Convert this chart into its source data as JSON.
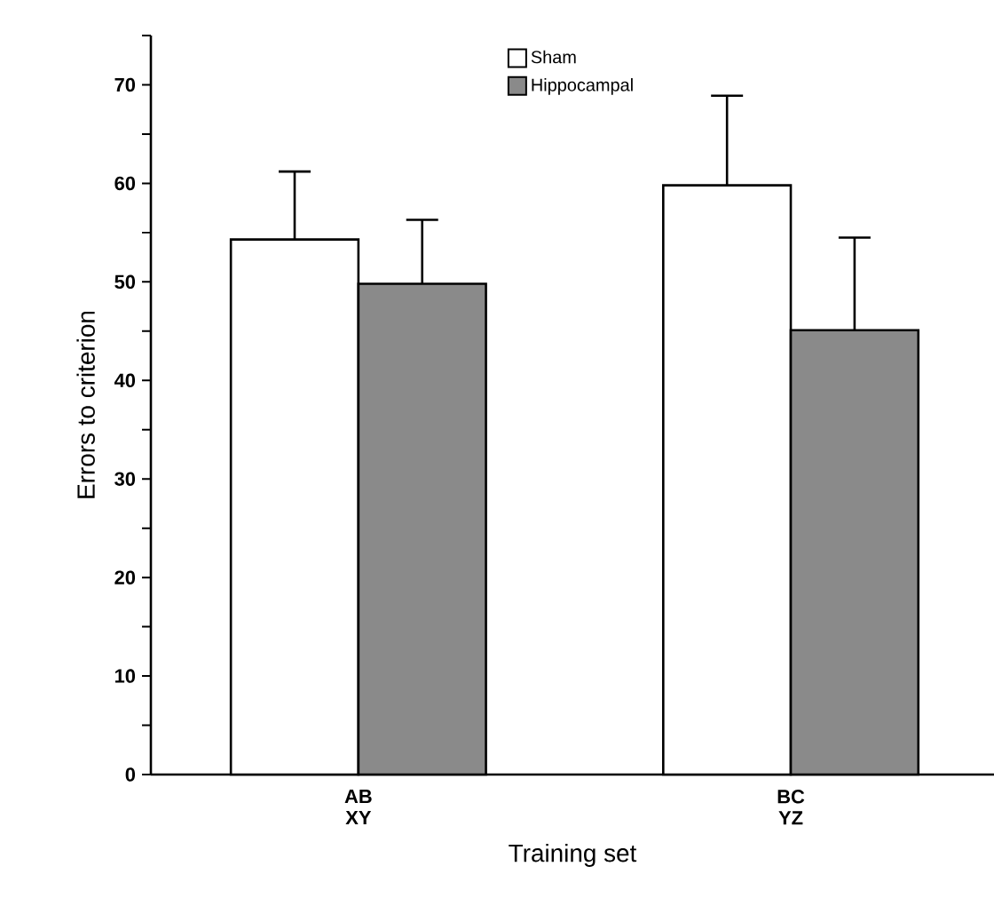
{
  "chart_data": {
    "type": "bar",
    "xlabel": "Training set",
    "ylabel": "Errors to criterion",
    "categories": [
      "AB XY",
      "BC YZ"
    ],
    "series": [
      {
        "name": "Sham",
        "color": "#ffffff",
        "values": [
          54.3,
          59.8
        ],
        "errors": [
          [
            54.3,
            61.2
          ],
          [
            59.8,
            68.9
          ]
        ]
      },
      {
        "name": "Hippocampal",
        "color": "#8a8a8a",
        "values": [
          49.8,
          45.1
        ],
        "errors": [
          [
            49.8,
            56.3
          ],
          [
            45.1,
            54.5
          ]
        ]
      }
    ],
    "ylim": [
      0,
      75
    ],
    "yticks": [
      0,
      {
        "value": 5,
        "label": null
      },
      10,
      {
        "value": 15,
        "label": null
      },
      20,
      {
        "value": 25,
        "label": null
      },
      30,
      {
        "value": 35,
        "label": null
      },
      40,
      {
        "value": 45,
        "label": null
      },
      50,
      {
        "value": 55,
        "label": null
      },
      60,
      {
        "value": 65,
        "label": null
      },
      70,
      {
        "value": 75,
        "label": null
      }
    ],
    "legend": "top",
    "grid": false
  }
}
